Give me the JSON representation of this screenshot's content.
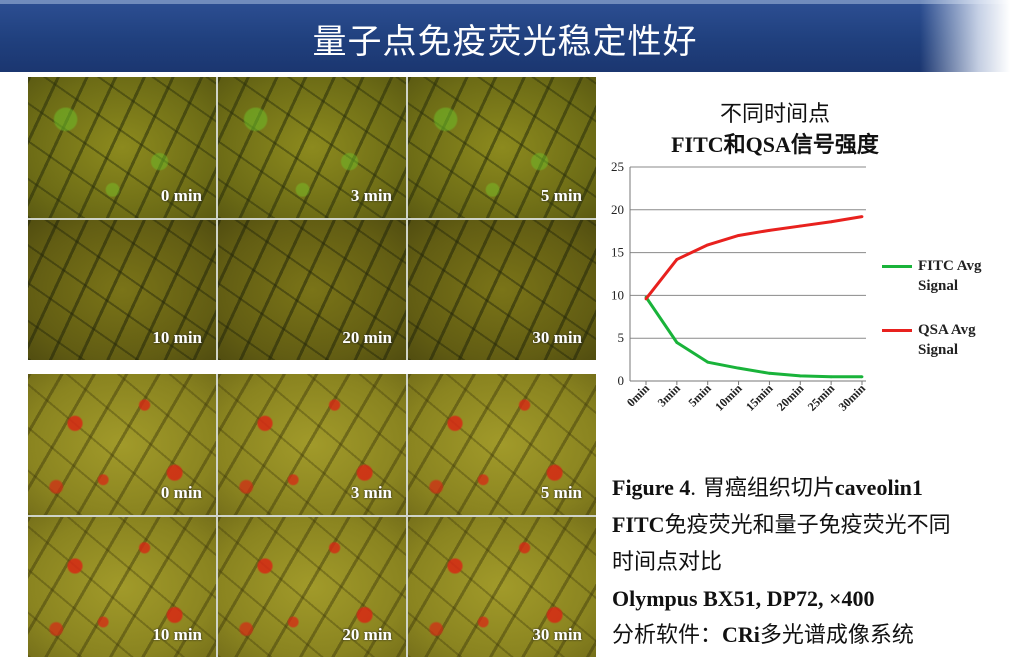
{
  "title": "量子点免疫荧光稳定性好",
  "panels": {
    "fitc": {
      "labels": [
        "0 min",
        "3 min",
        "5 min",
        "10 min",
        "20 min",
        "30 min"
      ]
    },
    "qsa": {
      "labels": [
        "0 min",
        "3 min",
        "5 min",
        "10 min",
        "20 min",
        "30 min"
      ]
    }
  },
  "chart_title": {
    "line1": "不同时间点",
    "line2": "FITC和QSA信号强度"
  },
  "chart_data": {
    "type": "line",
    "categories": [
      "0min",
      "3min",
      "5min",
      "10min",
      "15min",
      "20min",
      "25min",
      "30min"
    ],
    "series": [
      {
        "name": "FITC Avg Signal",
        "color": "#19b33a",
        "values": [
          9.8,
          4.5,
          2.2,
          1.5,
          0.9,
          0.6,
          0.5,
          0.5
        ]
      },
      {
        "name": "QSA Avg Signal",
        "color": "#e8211e",
        "values": [
          9.6,
          14.2,
          15.9,
          17.0,
          17.6,
          18.1,
          18.6,
          19.2
        ]
      }
    ],
    "yticks": [
      0,
      5,
      10,
      15,
      20,
      25
    ],
    "ylim": [
      0,
      25
    ],
    "grid": true,
    "legend_position": "right"
  },
  "caption": {
    "fig_label": "Figure 4",
    "fig_dot": ".",
    "line1_zh": " 胃癌组织切片",
    "line1_en": "caveolin1",
    "line2_en": "FITC",
    "line2_zh": "免疫荧光和量子免疫荧光不同",
    "line3_zh": "时间点对比",
    "line4": "Olympus BX51, DP72, ×400",
    "line5_zh": "分析软件：",
    "line5_en": "CRi",
    "line5_zh2": "多光谱成像系统"
  }
}
